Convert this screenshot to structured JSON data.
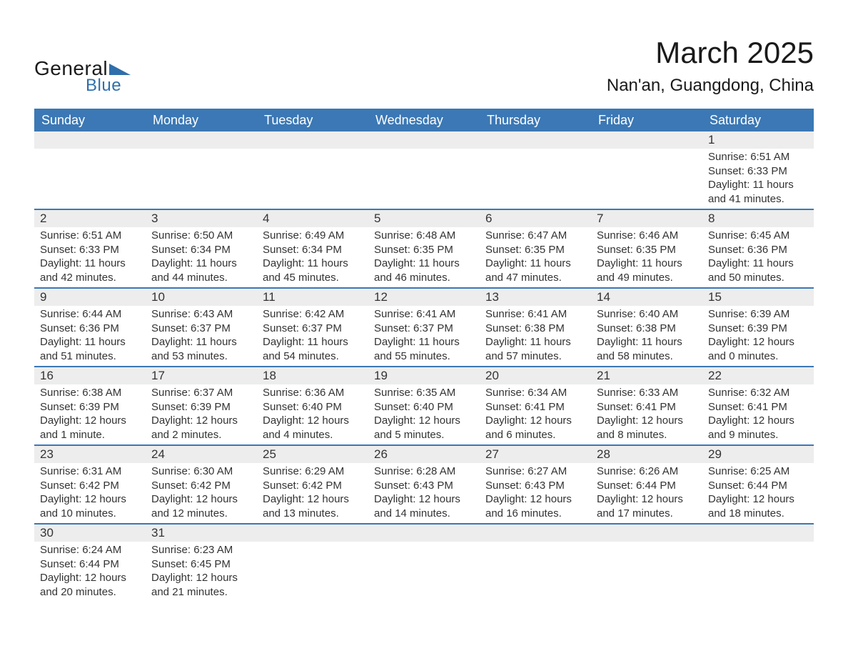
{
  "colors": {
    "header_bg": "#3b78b5",
    "header_text": "#ffffff",
    "daynum_bg": "#ededed",
    "row_divider": "#3b78b5",
    "text": "#333333",
    "logo_blue": "#2f6fab",
    "background": "#ffffff"
  },
  "typography": {
    "body_font": "Arial",
    "month_title_size_pt": 32,
    "location_size_pt": 18,
    "weekday_size_pt": 14,
    "daynum_size_pt": 13,
    "cell_text_size_pt": 11
  },
  "logo": {
    "text_general": "General",
    "text_blue": "Blue"
  },
  "title": {
    "month": "March 2025",
    "location": "Nan'an, Guangdong, China"
  },
  "weekdays": [
    "Sunday",
    "Monday",
    "Tuesday",
    "Wednesday",
    "Thursday",
    "Friday",
    "Saturday"
  ],
  "weeks": [
    [
      {
        "empty": true
      },
      {
        "empty": true
      },
      {
        "empty": true
      },
      {
        "empty": true
      },
      {
        "empty": true
      },
      {
        "empty": true
      },
      {
        "num": "1",
        "sunrise": "Sunrise: 6:51 AM",
        "sunset": "Sunset: 6:33 PM",
        "daylight1": "Daylight: 11 hours",
        "daylight2": "and 41 minutes."
      }
    ],
    [
      {
        "num": "2",
        "sunrise": "Sunrise: 6:51 AM",
        "sunset": "Sunset: 6:33 PM",
        "daylight1": "Daylight: 11 hours",
        "daylight2": "and 42 minutes."
      },
      {
        "num": "3",
        "sunrise": "Sunrise: 6:50 AM",
        "sunset": "Sunset: 6:34 PM",
        "daylight1": "Daylight: 11 hours",
        "daylight2": "and 44 minutes."
      },
      {
        "num": "4",
        "sunrise": "Sunrise: 6:49 AM",
        "sunset": "Sunset: 6:34 PM",
        "daylight1": "Daylight: 11 hours",
        "daylight2": "and 45 minutes."
      },
      {
        "num": "5",
        "sunrise": "Sunrise: 6:48 AM",
        "sunset": "Sunset: 6:35 PM",
        "daylight1": "Daylight: 11 hours",
        "daylight2": "and 46 minutes."
      },
      {
        "num": "6",
        "sunrise": "Sunrise: 6:47 AM",
        "sunset": "Sunset: 6:35 PM",
        "daylight1": "Daylight: 11 hours",
        "daylight2": "and 47 minutes."
      },
      {
        "num": "7",
        "sunrise": "Sunrise: 6:46 AM",
        "sunset": "Sunset: 6:35 PM",
        "daylight1": "Daylight: 11 hours",
        "daylight2": "and 49 minutes."
      },
      {
        "num": "8",
        "sunrise": "Sunrise: 6:45 AM",
        "sunset": "Sunset: 6:36 PM",
        "daylight1": "Daylight: 11 hours",
        "daylight2": "and 50 minutes."
      }
    ],
    [
      {
        "num": "9",
        "sunrise": "Sunrise: 6:44 AM",
        "sunset": "Sunset: 6:36 PM",
        "daylight1": "Daylight: 11 hours",
        "daylight2": "and 51 minutes."
      },
      {
        "num": "10",
        "sunrise": "Sunrise: 6:43 AM",
        "sunset": "Sunset: 6:37 PM",
        "daylight1": "Daylight: 11 hours",
        "daylight2": "and 53 minutes."
      },
      {
        "num": "11",
        "sunrise": "Sunrise: 6:42 AM",
        "sunset": "Sunset: 6:37 PM",
        "daylight1": "Daylight: 11 hours",
        "daylight2": "and 54 minutes."
      },
      {
        "num": "12",
        "sunrise": "Sunrise: 6:41 AM",
        "sunset": "Sunset: 6:37 PM",
        "daylight1": "Daylight: 11 hours",
        "daylight2": "and 55 minutes."
      },
      {
        "num": "13",
        "sunrise": "Sunrise: 6:41 AM",
        "sunset": "Sunset: 6:38 PM",
        "daylight1": "Daylight: 11 hours",
        "daylight2": "and 57 minutes."
      },
      {
        "num": "14",
        "sunrise": "Sunrise: 6:40 AM",
        "sunset": "Sunset: 6:38 PM",
        "daylight1": "Daylight: 11 hours",
        "daylight2": "and 58 minutes."
      },
      {
        "num": "15",
        "sunrise": "Sunrise: 6:39 AM",
        "sunset": "Sunset: 6:39 PM",
        "daylight1": "Daylight: 12 hours",
        "daylight2": "and 0 minutes."
      }
    ],
    [
      {
        "num": "16",
        "sunrise": "Sunrise: 6:38 AM",
        "sunset": "Sunset: 6:39 PM",
        "daylight1": "Daylight: 12 hours",
        "daylight2": "and 1 minute."
      },
      {
        "num": "17",
        "sunrise": "Sunrise: 6:37 AM",
        "sunset": "Sunset: 6:39 PM",
        "daylight1": "Daylight: 12 hours",
        "daylight2": "and 2 minutes."
      },
      {
        "num": "18",
        "sunrise": "Sunrise: 6:36 AM",
        "sunset": "Sunset: 6:40 PM",
        "daylight1": "Daylight: 12 hours",
        "daylight2": "and 4 minutes."
      },
      {
        "num": "19",
        "sunrise": "Sunrise: 6:35 AM",
        "sunset": "Sunset: 6:40 PM",
        "daylight1": "Daylight: 12 hours",
        "daylight2": "and 5 minutes."
      },
      {
        "num": "20",
        "sunrise": "Sunrise: 6:34 AM",
        "sunset": "Sunset: 6:41 PM",
        "daylight1": "Daylight: 12 hours",
        "daylight2": "and 6 minutes."
      },
      {
        "num": "21",
        "sunrise": "Sunrise: 6:33 AM",
        "sunset": "Sunset: 6:41 PM",
        "daylight1": "Daylight: 12 hours",
        "daylight2": "and 8 minutes."
      },
      {
        "num": "22",
        "sunrise": "Sunrise: 6:32 AM",
        "sunset": "Sunset: 6:41 PM",
        "daylight1": "Daylight: 12 hours",
        "daylight2": "and 9 minutes."
      }
    ],
    [
      {
        "num": "23",
        "sunrise": "Sunrise: 6:31 AM",
        "sunset": "Sunset: 6:42 PM",
        "daylight1": "Daylight: 12 hours",
        "daylight2": "and 10 minutes."
      },
      {
        "num": "24",
        "sunrise": "Sunrise: 6:30 AM",
        "sunset": "Sunset: 6:42 PM",
        "daylight1": "Daylight: 12 hours",
        "daylight2": "and 12 minutes."
      },
      {
        "num": "25",
        "sunrise": "Sunrise: 6:29 AM",
        "sunset": "Sunset: 6:42 PM",
        "daylight1": "Daylight: 12 hours",
        "daylight2": "and 13 minutes."
      },
      {
        "num": "26",
        "sunrise": "Sunrise: 6:28 AM",
        "sunset": "Sunset: 6:43 PM",
        "daylight1": "Daylight: 12 hours",
        "daylight2": "and 14 minutes."
      },
      {
        "num": "27",
        "sunrise": "Sunrise: 6:27 AM",
        "sunset": "Sunset: 6:43 PM",
        "daylight1": "Daylight: 12 hours",
        "daylight2": "and 16 minutes."
      },
      {
        "num": "28",
        "sunrise": "Sunrise: 6:26 AM",
        "sunset": "Sunset: 6:44 PM",
        "daylight1": "Daylight: 12 hours",
        "daylight2": "and 17 minutes."
      },
      {
        "num": "29",
        "sunrise": "Sunrise: 6:25 AM",
        "sunset": "Sunset: 6:44 PM",
        "daylight1": "Daylight: 12 hours",
        "daylight2": "and 18 minutes."
      }
    ],
    [
      {
        "num": "30",
        "sunrise": "Sunrise: 6:24 AM",
        "sunset": "Sunset: 6:44 PM",
        "daylight1": "Daylight: 12 hours",
        "daylight2": "and 20 minutes."
      },
      {
        "num": "31",
        "sunrise": "Sunrise: 6:23 AM",
        "sunset": "Sunset: 6:45 PM",
        "daylight1": "Daylight: 12 hours",
        "daylight2": "and 21 minutes."
      },
      {
        "empty": true
      },
      {
        "empty": true
      },
      {
        "empty": true
      },
      {
        "empty": true
      },
      {
        "empty": true
      }
    ]
  ]
}
